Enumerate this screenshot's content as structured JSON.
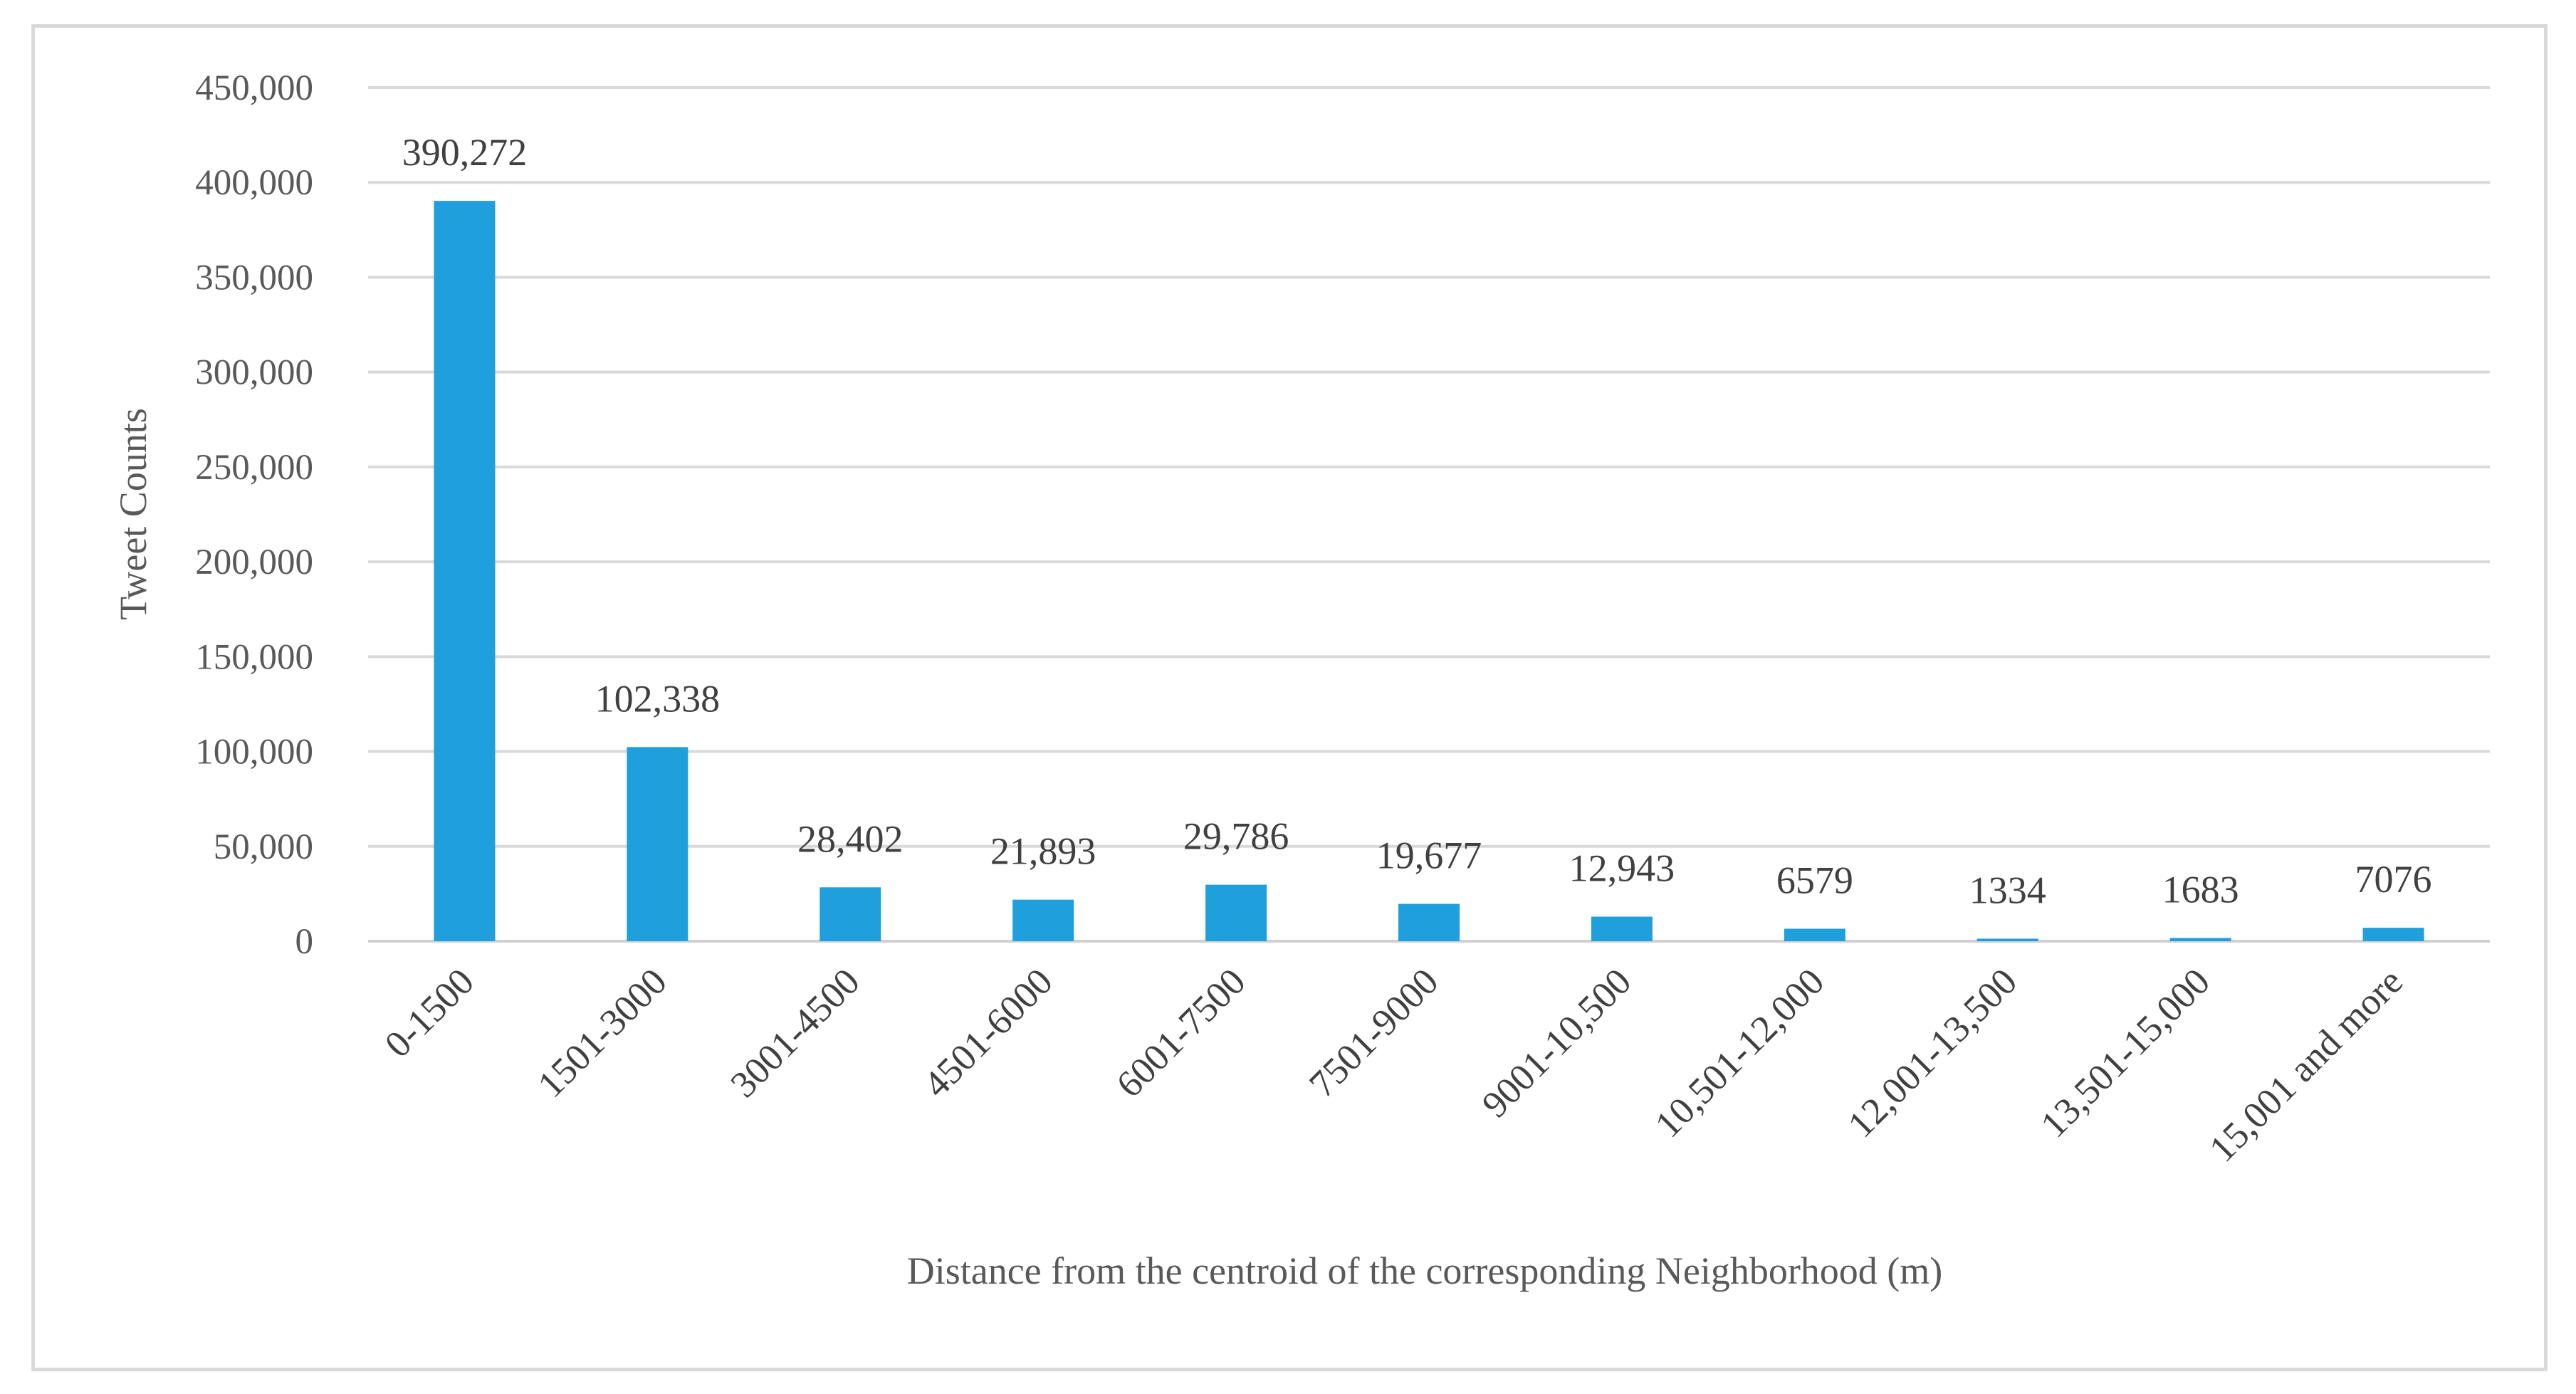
{
  "chart_data": {
    "type": "bar",
    "title": "",
    "xlabel": "Distance from the centroid of the corresponding Neighborhood (m)",
    "ylabel": "Tweet Counts",
    "ylim": [
      0,
      450000
    ],
    "yticks": [
      0,
      50000,
      100000,
      150000,
      200000,
      250000,
      300000,
      350000,
      400000,
      450000
    ],
    "ytick_labels": [
      "0",
      "50,000",
      "100,000",
      "150,000",
      "200,000",
      "250,000",
      "300,000",
      "350,000",
      "400,000",
      "450,000"
    ],
    "grid": true,
    "bar_color": "#1f9fdc",
    "categories": [
      "0-1500",
      "1501-3000",
      "3001-4500",
      "4501-6000",
      "6001-7500",
      "7501-9000",
      "9001-10,500",
      "10,501-12,000",
      "12,001-13,500",
      "13,501-15,000",
      "15,001 and more"
    ],
    "values": [
      390272,
      102338,
      28402,
      21893,
      29786,
      19677,
      12943,
      6579,
      1334,
      1683,
      7076
    ],
    "data_labels": [
      "390,272",
      "102,338",
      "28,402",
      "21,893",
      "29,786",
      "19,677",
      "12,943",
      "6579",
      "1334",
      "1683",
      "7076"
    ]
  }
}
